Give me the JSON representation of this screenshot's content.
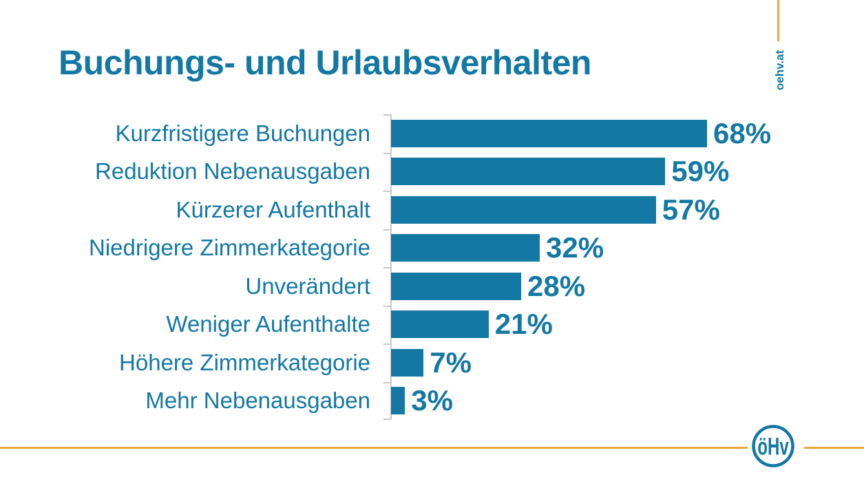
{
  "colors": {
    "teal": "#1378A4",
    "orange": "#E9A73E",
    "axis_gray": "#C8C8C8",
    "background": "#FFFFFF"
  },
  "branding": {
    "site_label": "oehv.at",
    "logo_monogram": "öHv"
  },
  "chart_data": {
    "type": "bar",
    "orientation": "horizontal",
    "title": "Buchungs- und Urlaubsverhalten",
    "categories": [
      "Kurzfristigere Buchungen",
      "Reduktion Nebenausgaben",
      "Kürzerer Aufenthalt",
      "Niedrigere Zimmerkategorie",
      "Unverändert",
      "Weniger Aufenthalte",
      "Höhere Zimmerkategorie",
      "Mehr Nebenausgaben"
    ],
    "values": [
      68,
      59,
      57,
      32,
      28,
      21,
      7,
      3
    ],
    "unit": "%",
    "value_labels": [
      "68%",
      "59%",
      "57%",
      "32%",
      "28%",
      "21%",
      "7%",
      "3%"
    ],
    "xlim": [
      0,
      80
    ],
    "grid": false,
    "legend_position": "none",
    "value_labels_shown": true
  }
}
